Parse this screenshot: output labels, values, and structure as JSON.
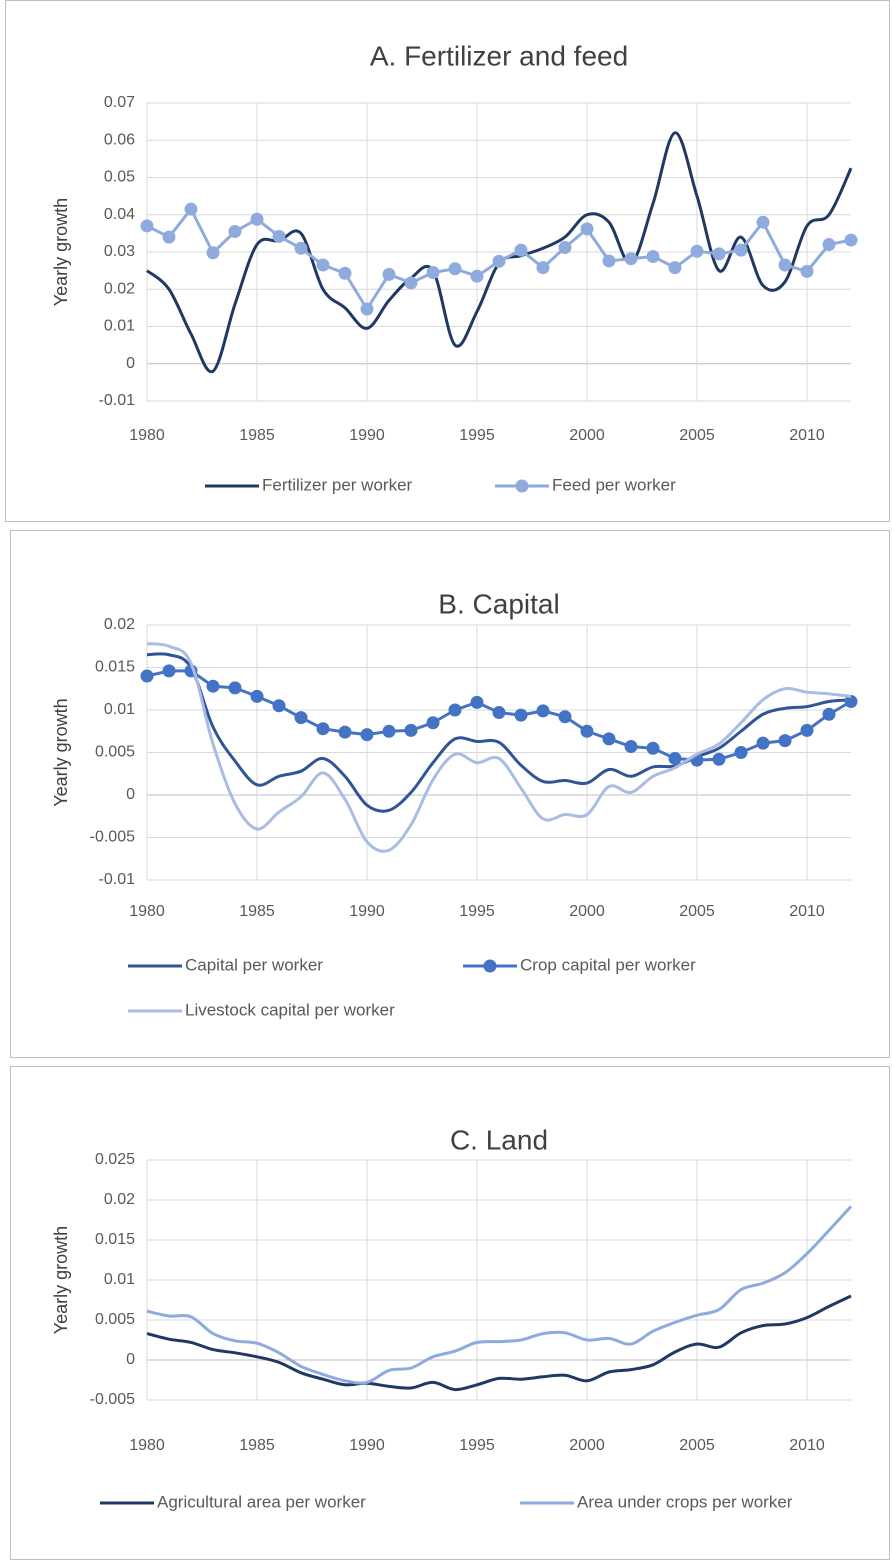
{
  "chart_data": [
    {
      "type": "line",
      "title": "A. Fertilizer and feed",
      "y_label": "Yearly growth",
      "x": [
        1980,
        1981,
        1982,
        1983,
        1984,
        1985,
        1986,
        1987,
        1988,
        1989,
        1990,
        1991,
        1992,
        1993,
        1994,
        1995,
        1996,
        1997,
        1998,
        1999,
        2000,
        2001,
        2002,
        2003,
        2004,
        2005,
        2006,
        2007,
        2008,
        2009,
        2010,
        2011,
        2012
      ],
      "xlim": [
        1980,
        2012
      ],
      "xticks": [
        1980,
        1985,
        1990,
        1995,
        2000,
        2005,
        2010
      ],
      "ylim": [
        -0.01,
        0.07
      ],
      "yticks": [
        -0.01,
        0,
        0.01,
        0.02,
        0.03,
        0.04,
        0.05,
        0.06,
        0.07
      ],
      "grid": true,
      "series": [
        {
          "name": "Fertilizer per worker",
          "color": "#203864",
          "smooth": true,
          "marker": false,
          "values": [
            0.025,
            0.02,
            0.008,
            -0.002,
            0.016,
            0.032,
            0.033,
            0.035,
            0.02,
            0.015,
            0.0095,
            0.017,
            0.023,
            0.025,
            0.005,
            0.014,
            0.027,
            0.029,
            0.031,
            0.034,
            0.04,
            0.038,
            0.027,
            0.043,
            0.062,
            0.045,
            0.025,
            0.034,
            0.021,
            0.022,
            0.037,
            0.04,
            0.0525
          ]
        },
        {
          "name": "Feed per worker",
          "color": "#8faadc",
          "smooth": false,
          "marker": true,
          "values": [
            0.037,
            0.034,
            0.0415,
            0.0298,
            0.0355,
            0.0388,
            0.0342,
            0.031,
            0.0265,
            0.0243,
            0.0147,
            0.024,
            0.0217,
            0.0245,
            0.0255,
            0.0235,
            0.0275,
            0.0305,
            0.0258,
            0.0312,
            0.0362,
            0.0276,
            0.0282,
            0.0288,
            0.0258,
            0.0302,
            0.0295,
            0.0305,
            0.038,
            0.0265,
            0.0248,
            0.032,
            0.0332
          ]
        }
      ]
    },
    {
      "type": "line",
      "title": "B. Capital",
      "y_label": "Yearly growth",
      "x": [
        1980,
        1981,
        1982,
        1983,
        1984,
        1985,
        1986,
        1987,
        1988,
        1989,
        1990,
        1991,
        1992,
        1993,
        1994,
        1995,
        1996,
        1997,
        1998,
        1999,
        2000,
        2001,
        2002,
        2003,
        2004,
        2005,
        2006,
        2007,
        2008,
        2009,
        2010,
        2011,
        2012
      ],
      "xlim": [
        1980,
        2012
      ],
      "xticks": [
        1980,
        1985,
        1990,
        1995,
        2000,
        2005,
        2010
      ],
      "ylim": [
        -0.01,
        0.02
      ],
      "yticks": [
        -0.01,
        -0.005,
        0,
        0.005,
        0.01,
        0.015,
        0.02
      ],
      "grid": true,
      "series": [
        {
          "name": "Capital per worker",
          "color": "#2f5597",
          "smooth": true,
          "marker": false,
          "values": [
            0.0165,
            0.0165,
            0.015,
            0.008,
            0.004,
            0.0012,
            0.0022,
            0.0028,
            0.0043,
            0.0022,
            -0.0012,
            -0.0018,
            0.0003,
            0.0038,
            0.0066,
            0.0063,
            0.0062,
            0.0035,
            0.0016,
            0.0017,
            0.0014,
            0.003,
            0.0022,
            0.0033,
            0.0034,
            0.0045,
            0.0055,
            0.0075,
            0.0095,
            0.0102,
            0.0104,
            0.011,
            0.0112
          ]
        },
        {
          "name": "Crop capital per worker",
          "color": "#4472c4",
          "smooth": false,
          "marker": true,
          "values": [
            0.014,
            0.0146,
            0.0146,
            0.0128,
            0.0126,
            0.0116,
            0.0105,
            0.0091,
            0.0078,
            0.0074,
            0.0071,
            0.0075,
            0.0076,
            0.0085,
            0.01,
            0.0109,
            0.0097,
            0.0094,
            0.0099,
            0.0092,
            0.0075,
            0.0066,
            0.0057,
            0.0055,
            0.0043,
            0.0041,
            0.0042,
            0.005,
            0.0061,
            0.0064,
            0.0076,
            0.0095,
            0.011
          ]
        },
        {
          "name": "Livestock capital per worker",
          "color": "#a9bce4",
          "smooth": true,
          "marker": false,
          "values": [
            0.0178,
            0.0175,
            0.0155,
            0.006,
            -0.001,
            -0.004,
            -0.002,
            -0.0002,
            0.0026,
            -0.0005,
            -0.0055,
            -0.0065,
            -0.0035,
            0.0018,
            0.0048,
            0.0038,
            0.0043,
            0.0008,
            -0.0028,
            -0.0023,
            -0.0023,
            0.001,
            0.0003,
            0.0022,
            0.0032,
            0.0048,
            0.006,
            0.0085,
            0.0112,
            0.0125,
            0.0121,
            0.0119,
            0.0116
          ]
        }
      ]
    },
    {
      "type": "line",
      "title": "C. Land",
      "y_label": "Yearly growth",
      "x": [
        1980,
        1981,
        1982,
        1983,
        1984,
        1985,
        1986,
        1987,
        1988,
        1989,
        1990,
        1991,
        1992,
        1993,
        1994,
        1995,
        1996,
        1997,
        1998,
        1999,
        2000,
        2001,
        2002,
        2003,
        2004,
        2005,
        2006,
        2007,
        2008,
        2009,
        2010,
        2011,
        2012
      ],
      "xlim": [
        1980,
        2012
      ],
      "xticks": [
        1980,
        1985,
        1990,
        1995,
        2000,
        2005,
        2010
      ],
      "ylim": [
        -0.005,
        0.025
      ],
      "yticks": [
        -0.005,
        0,
        0.005,
        0.01,
        0.015,
        0.02,
        0.025
      ],
      "grid": true,
      "series": [
        {
          "name": "Agricultural area per worker",
          "color": "#203864",
          "smooth": true,
          "marker": false,
          "values": [
            0.0033,
            0.0026,
            0.0022,
            0.0013,
            0.0009,
            0.0004,
            -0.0003,
            -0.0016,
            -0.0024,
            -0.0031,
            -0.0029,
            -0.0033,
            -0.0035,
            -0.0028,
            -0.0037,
            -0.0031,
            -0.0023,
            -0.0024,
            -0.0021,
            -0.0019,
            -0.0026,
            -0.0015,
            -0.0012,
            -0.0006,
            0.001,
            0.002,
            0.0016,
            0.0034,
            0.0043,
            0.0045,
            0.0053,
            0.0067,
            0.008
          ]
        },
        {
          "name": "Area under crops per worker",
          "color": "#8faadc",
          "smooth": true,
          "marker": false,
          "values": [
            0.0061,
            0.0055,
            0.0054,
            0.0033,
            0.0024,
            0.0021,
            0.0009,
            -0.0008,
            -0.0018,
            -0.0026,
            -0.0028,
            -0.0013,
            -0.001,
            0.0004,
            0.0011,
            0.0022,
            0.0023,
            0.0025,
            0.0033,
            0.0034,
            0.0025,
            0.0027,
            0.002,
            0.0036,
            0.0047,
            0.0056,
            0.0063,
            0.0088,
            0.0096,
            0.0109,
            0.0133,
            0.0162,
            0.0192
          ]
        }
      ]
    }
  ]
}
